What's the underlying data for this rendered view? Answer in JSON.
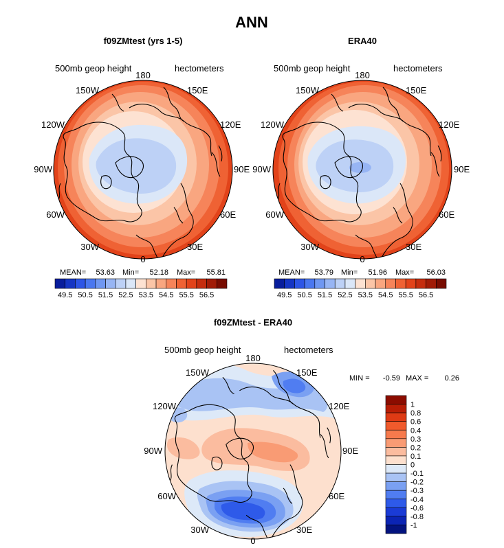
{
  "page_title": "ANN",
  "chart_data": [
    {
      "type": "heatmap",
      "projection": "north polar stereographic",
      "title": "f09ZMtest (yrs 1-5)",
      "variable": "500mb geop height",
      "units": "hectometers",
      "lon_labels": [
        "180",
        "150E",
        "120E",
        "90E",
        "60E",
        "30E",
        "0",
        "30W",
        "60W",
        "90W",
        "120W",
        "150W"
      ],
      "stats": {
        "mean_label": "MEAN=",
        "mean": "53.63",
        "min_label": "Min=",
        "min": "52.18",
        "max_label": "Max=",
        "max": "55.81"
      },
      "colorbar_levels": [
        "49.5",
        "50.5",
        "51.5",
        "52.5",
        "53.5",
        "54.5",
        "55.5",
        "56.5"
      ],
      "colorbar_colors": [
        "#081d9c",
        "#1535c4",
        "#2d55e6",
        "#4a77f0",
        "#6f97f2",
        "#97b5f4",
        "#bdd1f6",
        "#dbe7f8",
        "#fde2d2",
        "#fbc5a7",
        "#f9a680",
        "#f6845a",
        "#ef6234",
        "#e2431a",
        "#c52d0e",
        "#a11b06",
        "#780c01"
      ],
      "zonal_field_by_latitude": [
        {
          "lat": 90,
          "value": 52.3
        },
        {
          "lat": 80,
          "value": 52.6
        },
        {
          "lat": 70,
          "value": 53.0
        },
        {
          "lat": 60,
          "value": 53.8
        },
        {
          "lat": 50,
          "value": 54.6
        },
        {
          "lat": 40,
          "value": 55.3
        },
        {
          "lat": 30,
          "value": 55.8
        }
      ]
    },
    {
      "type": "heatmap",
      "projection": "north polar stereographic",
      "title": "ERA40",
      "variable": "500mb geop height",
      "units": "hectometers",
      "lon_labels": [
        "180",
        "150E",
        "120E",
        "90E",
        "60E",
        "30E",
        "0",
        "30W",
        "60W",
        "90W",
        "120W",
        "150W"
      ],
      "stats": {
        "mean_label": "MEAN=",
        "mean": "53.79",
        "min_label": "Min=",
        "min": "51.96",
        "max_label": "Max=",
        "max": "56.03"
      },
      "colorbar_levels": [
        "49.5",
        "50.5",
        "51.5",
        "52.5",
        "53.5",
        "54.5",
        "55.5",
        "56.5"
      ],
      "colorbar_colors": [
        "#081d9c",
        "#1535c4",
        "#2d55e6",
        "#4a77f0",
        "#6f97f2",
        "#97b5f4",
        "#bdd1f6",
        "#dbe7f8",
        "#fde2d2",
        "#fbc5a7",
        "#f9a680",
        "#f6845a",
        "#ef6234",
        "#e2431a",
        "#c52d0e",
        "#a11b06",
        "#780c01"
      ],
      "zonal_field_by_latitude": [
        {
          "lat": 90,
          "value": 52.2
        },
        {
          "lat": 80,
          "value": 52.5
        },
        {
          "lat": 70,
          "value": 53.0
        },
        {
          "lat": 60,
          "value": 53.9
        },
        {
          "lat": 50,
          "value": 54.8
        },
        {
          "lat": 40,
          "value": 55.5
        },
        {
          "lat": 30,
          "value": 56.0
        }
      ]
    },
    {
      "type": "heatmap",
      "projection": "north polar stereographic",
      "title": "f09ZMtest - ERA40",
      "variable": "500mb geop height",
      "units": "hectometers",
      "lon_labels": [
        "180",
        "150E",
        "120E",
        "90E",
        "60E",
        "30E",
        "0",
        "30W",
        "60W",
        "90W",
        "120W",
        "150W"
      ],
      "stats": {
        "min_label": "MIN =",
        "min": "-0.59",
        "max_label": "MAX =",
        "max": "0.26"
      },
      "colorbar_levels": [
        "1",
        "0.8",
        "0.6",
        "0.4",
        "0.3",
        "0.2",
        "0.1",
        "0",
        "-0.1",
        "-0.2",
        "-0.3",
        "-0.4",
        "-0.6",
        "-0.8",
        "-1"
      ],
      "colorbar_colors": [
        "#8c0c00",
        "#b81d05",
        "#de3a14",
        "#f05a2c",
        "#f67a4d",
        "#f99b74",
        "#fbbc9f",
        "#fde0ce",
        "#dde9f8",
        "#a9c3f4",
        "#7aa0f2",
        "#507df1",
        "#2e5ae9",
        "#1a3bd6",
        "#0b24b4",
        "#03137f"
      ],
      "difference_features": [
        {
          "name": "negative anomaly near 150E",
          "lon": 150,
          "lat": 60,
          "value": -0.35
        },
        {
          "name": "negative band across North Pacific",
          "lon": -150,
          "lat": 45,
          "value": -0.2
        },
        {
          "name": "positive anomaly over central Arctic",
          "lon": 60,
          "lat": 85,
          "value": 0.15
        },
        {
          "name": "positive band over Canada",
          "lon": -95,
          "lat": 60,
          "value": 0.1
        },
        {
          "name": "minimum over North Atlantic",
          "lon": -15,
          "lat": 48,
          "value": -0.59
        },
        {
          "name": "maximum near 60E",
          "lon": 60,
          "lat": 55,
          "value": 0.26
        }
      ]
    }
  ]
}
